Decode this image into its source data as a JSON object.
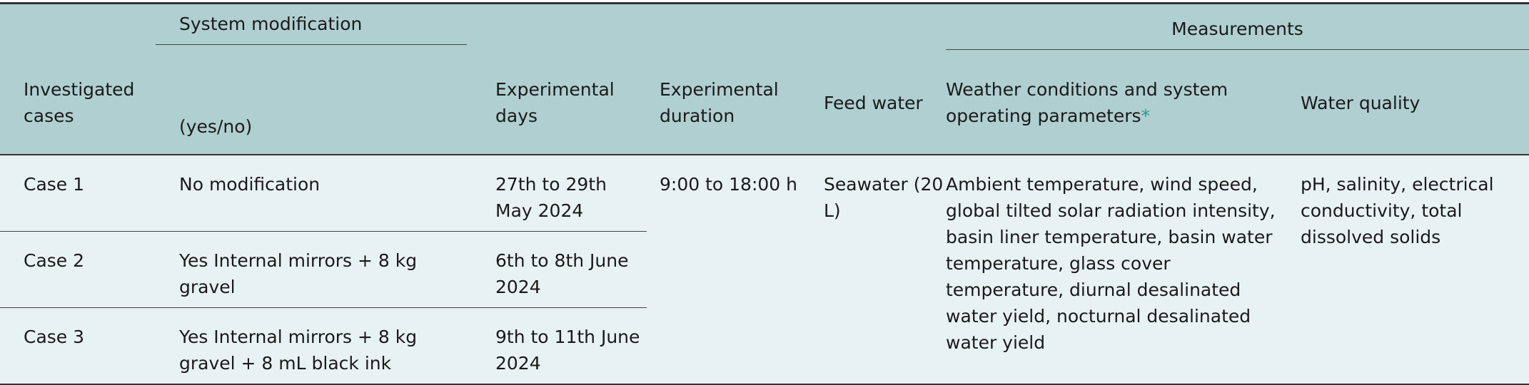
{
  "header": {
    "investigated_cases": "Investigated cases",
    "system_modification": "System modification",
    "yes_no": "(yes/no)",
    "experimental_days": "Experimental days",
    "experimental_duration": "Experimental duration",
    "feed_water": "Feed water",
    "measurements": "Measurements",
    "weather_conditions": "Weather conditions and system operating parameters",
    "asterisk": "*",
    "water_quality": "Water quality"
  },
  "rows": [
    {
      "case": "Case 1",
      "modification": "No modification",
      "days": "27th to 29th May 2024"
    },
    {
      "case": "Case 2",
      "modification": "Yes Internal mirrors + 8 kg gravel",
      "days": "6th to 8th June 2024"
    },
    {
      "case": "Case 3",
      "modification": "Yes Internal mirrors + 8 kg gravel + 8 mL black ink",
      "days": "9th to 11th June 2024"
    }
  ],
  "shared": {
    "duration": "9:00 to 18:00 h",
    "feed_water": "Seawater (20 L)",
    "weather_params": "Ambient temperature, wind speed, global tilted solar radiation intensity, basin liner temperature, basin water temperature, glass cover temperature, diurnal desalinated water yield, nocturnal desalinated water yield",
    "water_quality": "pH, salinity, electrical conductivity, total dissolved solids"
  }
}
